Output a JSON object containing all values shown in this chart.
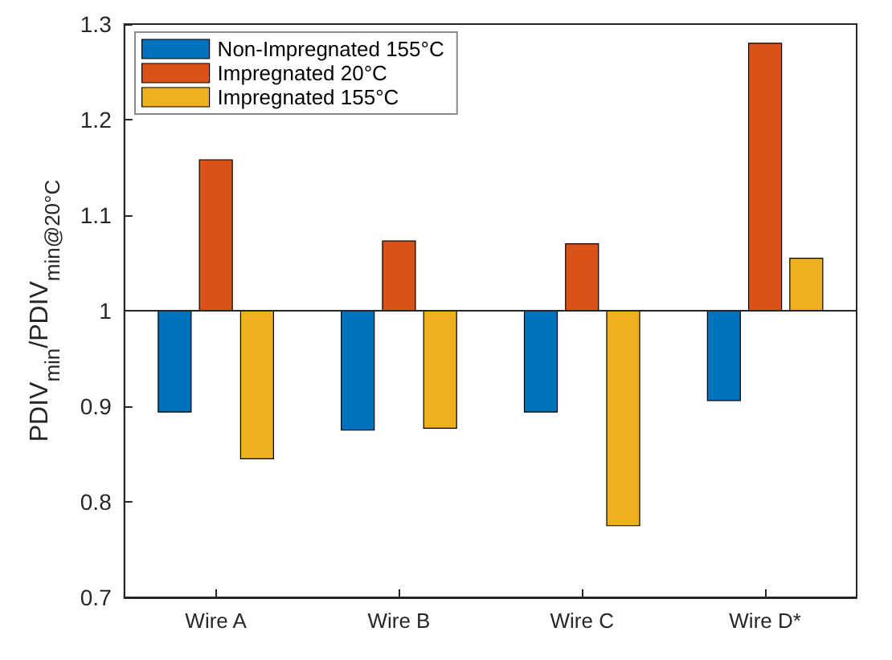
{
  "chart_data": {
    "type": "bar",
    "ylabel": "PDIV$_{min}$/PDIV$_{min@20°C}$",
    "categories": [
      "Wire A",
      "Wire B",
      "Wire C",
      "Wire D*"
    ],
    "series": [
      {
        "name": "Non-Impregnated 155°C",
        "color": "#0072bd",
        "base": [
          1,
          1,
          1,
          1
        ],
        "values": [
          -0.106,
          -0.125,
          -0.106,
          -0.094
        ]
      },
      {
        "name": "Impregnated 20°C",
        "color": "#d95319",
        "base": [
          1,
          1,
          1,
          1
        ],
        "values": [
          0.158,
          0.073,
          0.07,
          0.28
        ]
      },
      {
        "name": "Impregnated 155°C",
        "color": "#edb120",
        "base": [
          1,
          1,
          1,
          1
        ],
        "values": [
          -0.155,
          -0.123,
          -0.225,
          0.055
        ]
      }
    ],
    "ylim": [
      0.7,
      1.3
    ],
    "yticks": [
      0.7,
      0.8,
      0.9,
      1,
      1.1,
      1.2,
      1.3
    ],
    "ref_lines": [
      {
        "axis": "y",
        "value": 1,
        "color": "#262626"
      }
    ],
    "grid": false,
    "legend": "top left"
  }
}
